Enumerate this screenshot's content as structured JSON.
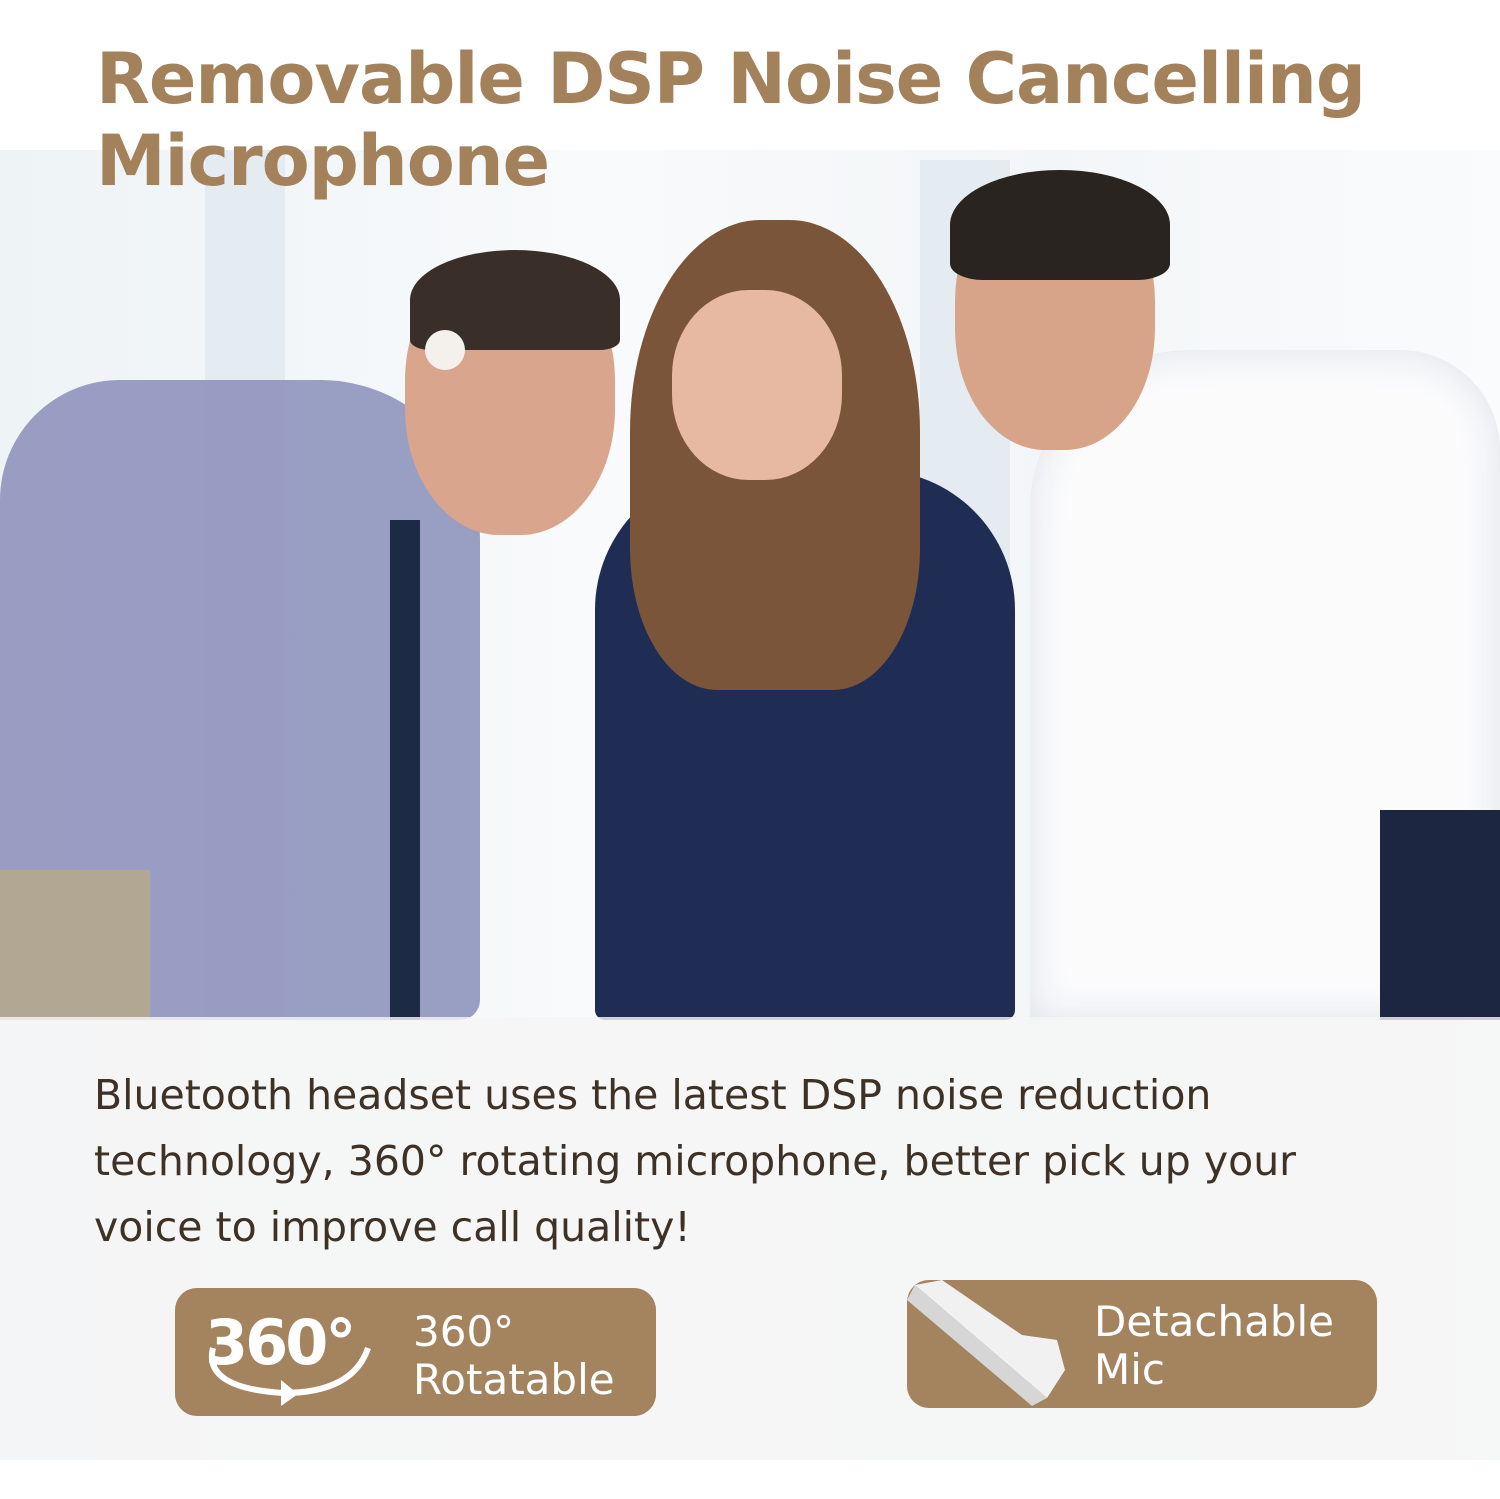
{
  "title": {
    "line1": "Removable DSP Noise Cancelling",
    "line2": "Microphone"
  },
  "description": "Bluetooth headset uses the latest DSP noise reduction technology, 360° rotating microphone, better pick up your voice to improve call quality!",
  "badges": [
    {
      "icon": "rotate-360-icon",
      "icon_text": "360°",
      "label_line1": "360°",
      "label_line2": "Rotatable"
    },
    {
      "icon": "microphone-boom-icon",
      "label_line1": "Detachable",
      "label_line2": "Mic"
    }
  ],
  "colors": {
    "title": "#a3815a",
    "badge": "#a3845f",
    "text": "#3e3226"
  }
}
